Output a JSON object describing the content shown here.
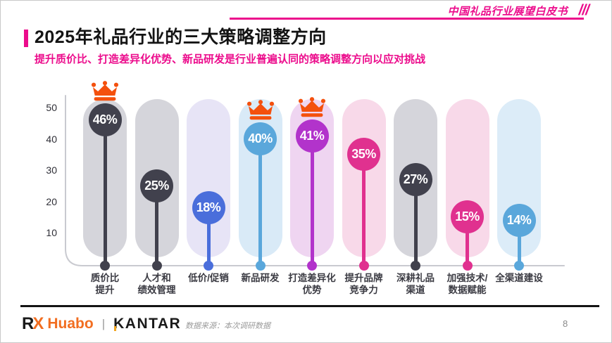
{
  "header": {
    "whitepaper_label": "中国礼品行业展望白皮书",
    "slashes": "///",
    "accent_color": "#EC0C8C"
  },
  "title": "2025年礼品行业的三大策略调整方向",
  "subtitle": "提升质价比、打造差异化优势、新品研发是行业普遍认同的策略调整方向以应对挑战",
  "chart_data": {
    "type": "bar",
    "variant": "lollipop",
    "title": "2025年礼品行业的三大策略调整方向",
    "xlabel": "",
    "ylabel": "",
    "unit": "%",
    "ylim": [
      0,
      52
    ],
    "yticks": [
      10,
      20,
      30,
      40,
      50
    ],
    "grid": false,
    "categories": [
      "质价比提升",
      "人才和绩效管理",
      "低价/促销",
      "新品研发",
      "打造差异化优势",
      "提升品牌竞争力",
      "深耕礼品渠道",
      "加强技术/数据赋能",
      "全渠道建设"
    ],
    "category_label_lines": [
      [
        "质价比",
        "提升"
      ],
      [
        "人才和",
        "绩效管理"
      ],
      [
        "低价/促销"
      ],
      [
        "新品研发"
      ],
      [
        "打造差异化",
        "优势"
      ],
      [
        "提升品牌",
        "竞争力"
      ],
      [
        "深耕礼品",
        "渠道"
      ],
      [
        "加强技术/",
        "数据赋能"
      ],
      [
        "全渠道建设"
      ]
    ],
    "values": [
      46,
      25,
      18,
      40,
      41,
      35,
      27,
      15,
      14
    ],
    "crowned_indices": [
      0,
      3,
      4
    ],
    "colors": [
      "#41414D",
      "#41414D",
      "#4A6EDB",
      "#5AA7DB",
      "#B233CB",
      "#E0318F",
      "#41414D",
      "#E0318F",
      "#5AA7DB"
    ],
    "pill_colors": [
      "#D5D5DB",
      "#D5D5DB",
      "#E7E4F6",
      "#D9EAF7",
      "#EFD5F1",
      "#F8D9E9",
      "#D5D5DB",
      "#F8D9E9",
      "#DCECF8"
    ],
    "crown_color": "#F4500D",
    "axis_color": "#C9CAD0"
  },
  "footer": {
    "logo_rx_r": "R",
    "logo_rx_x": "X",
    "logo_huabo": "Huabo",
    "separator": "|",
    "logo_kantar": "KANTAR",
    "source": "数据来源：本次调研数据",
    "page_number": "8"
  }
}
